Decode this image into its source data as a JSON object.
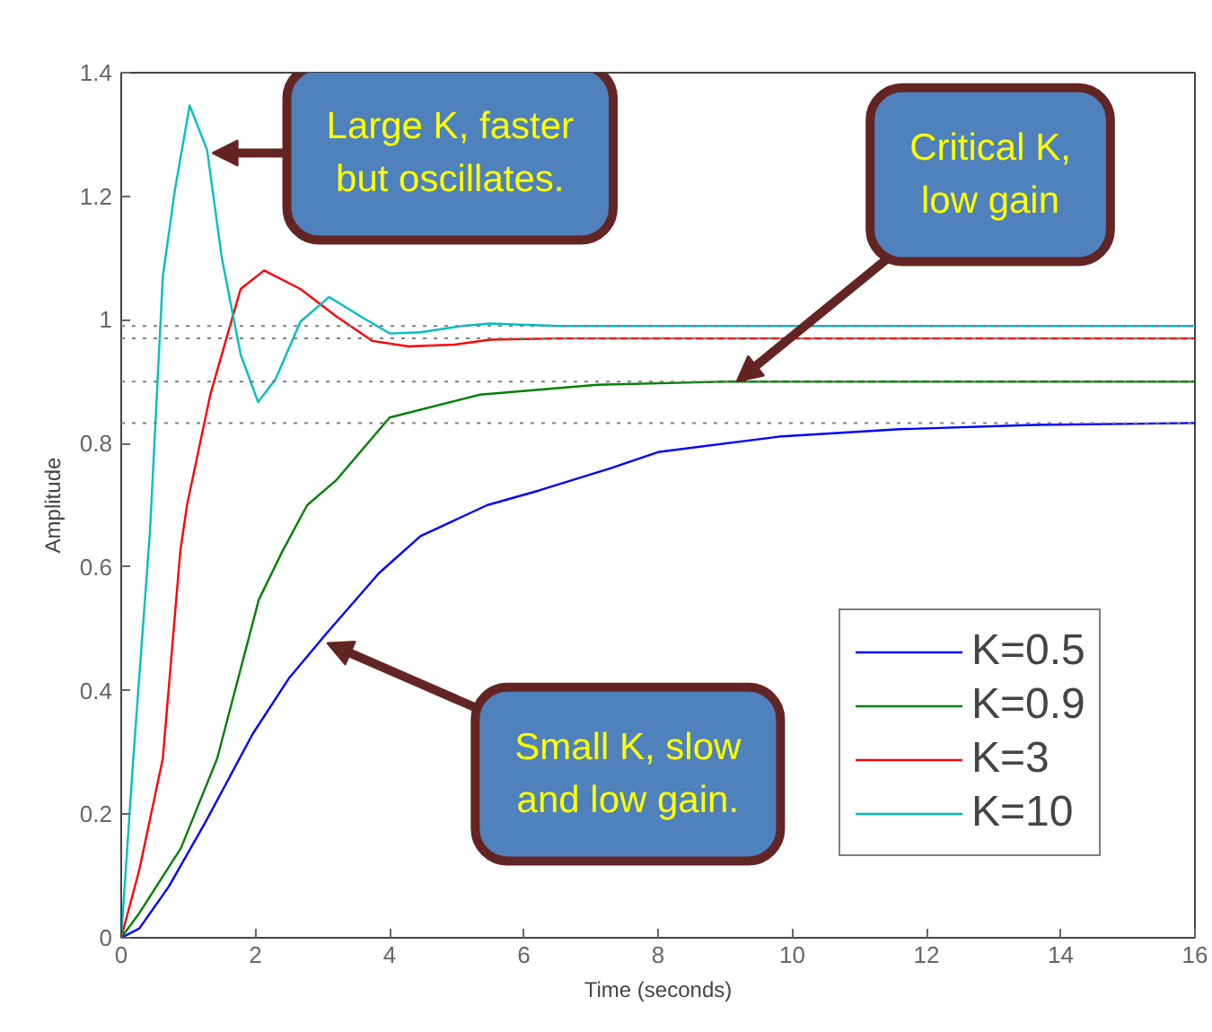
{
  "chart_data": {
    "type": "line",
    "xlabel": "Time (seconds)",
    "ylabel": "Amplitude",
    "xlim": [
      0,
      16
    ],
    "xticks": [
      0,
      2,
      4,
      6,
      8,
      10,
      12,
      14,
      16
    ],
    "ylim": [
      0,
      1.4
    ],
    "yticks": [
      0,
      0.2,
      0.4,
      0.6,
      0.8,
      1,
      1.2,
      1.4
    ],
    "grid": false,
    "legend": "right",
    "marker": "none",
    "line_style": "solid",
    "series": [
      {
        "name": "K=0.5",
        "color": "#0000ff",
        "x": [
          0,
          0.27,
          0.71,
          1.25,
          1.96,
          2.5,
          3.04,
          3.84,
          4.46,
          5.45,
          6.23,
          7.3,
          8.0,
          9.8,
          11.6,
          13.6,
          16
        ],
        "values": [
          0,
          0.015,
          0.083,
          0.186,
          0.33,
          0.42,
          0.49,
          0.59,
          0.65,
          0.7,
          0.724,
          0.76,
          0.786,
          0.811,
          0.823,
          0.83,
          0.833
        ]
      },
      {
        "name": "K=0.9",
        "color": "#008000",
        "x": [
          0,
          0.27,
          0.89,
          1.43,
          2.05,
          2.4,
          2.77,
          3.2,
          4.0,
          5.35,
          7.1,
          9,
          16
        ],
        "values": [
          0,
          0.04,
          0.145,
          0.29,
          0.547,
          0.625,
          0.7,
          0.74,
          0.842,
          0.879,
          0.895,
          0.9,
          0.9
        ]
      },
      {
        "name": "K=3",
        "color": "#ff0000",
        "x": [
          0,
          0.27,
          0.62,
          0.88,
          0.98,
          1.33,
          1.78,
          2.13,
          2.67,
          3.2,
          3.74,
          4.28,
          4.97,
          5.5,
          6.5,
          16
        ],
        "values": [
          0,
          0.11,
          0.29,
          0.625,
          0.7,
          0.88,
          1.05,
          1.08,
          1.05,
          1.006,
          0.966,
          0.957,
          0.96,
          0.968,
          0.97,
          0.97
        ]
      },
      {
        "name": "K=10",
        "color": "#00bfbf",
        "x": [
          0,
          0.18,
          0.43,
          0.62,
          0.8,
          1.02,
          1.28,
          1.5,
          1.78,
          2.04,
          2.3,
          2.67,
          3.1,
          3.56,
          4.0,
          4.46,
          5.08,
          5.5,
          6.5,
          16
        ],
        "values": [
          0,
          0.29,
          0.66,
          1.07,
          1.21,
          1.347,
          1.275,
          1.1,
          0.944,
          0.867,
          0.904,
          0.997,
          1.037,
          1.006,
          0.978,
          0.98,
          0.99,
          0.994,
          0.99,
          0.99
        ]
      }
    ],
    "ref_lines": [
      {
        "axis": "y",
        "value": 0.99,
        "color": "#808080",
        "line_style": "dotted"
      },
      {
        "axis": "y",
        "value": 0.97,
        "color": "#808080",
        "line_style": "dotted"
      },
      {
        "axis": "y",
        "value": 0.9,
        "color": "#808080",
        "line_style": "dotted"
      },
      {
        "axis": "y",
        "value": 0.833,
        "color": "#808080",
        "line_style": "dotted"
      }
    ],
    "annotations": [
      {
        "text": "Large K, faster\nbut oscillates.",
        "x": 1.36,
        "y": 1.27
      },
      {
        "text": "Critical K,\nlow gain",
        "x": 9.17,
        "y": 0.9
      },
      {
        "text": "Small K, slow\nand low gain.",
        "x": 3.07,
        "y": 0.477
      }
    ]
  }
}
